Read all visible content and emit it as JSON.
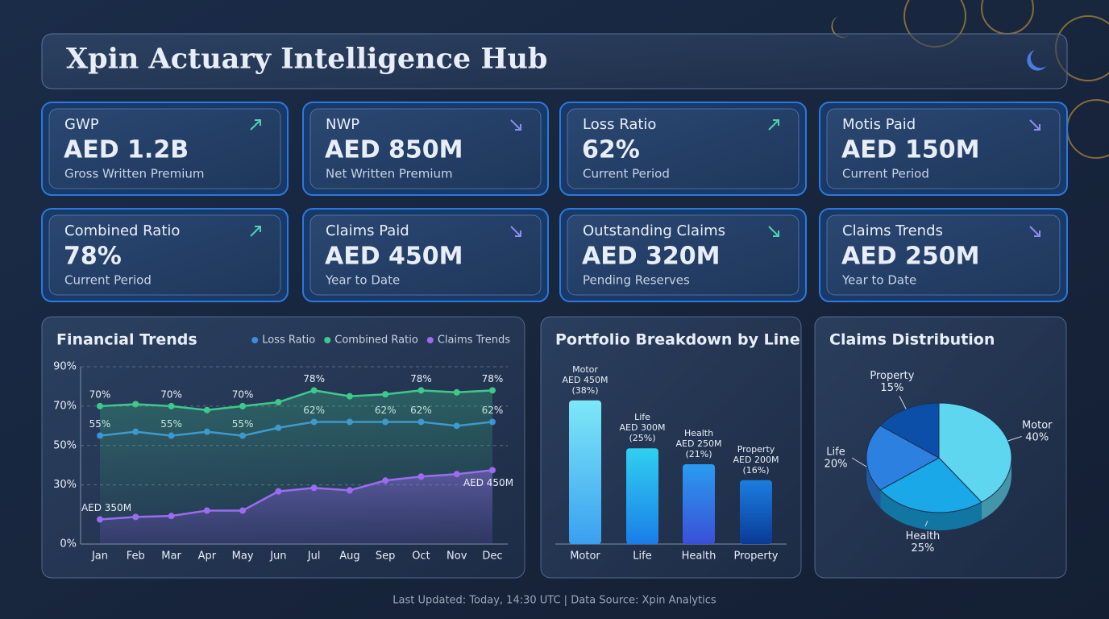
{
  "header": {
    "title": "Xpin Actuary Intelligence Hub"
  },
  "kpis": [
    {
      "label": "GWP",
      "value": "AED 1.2B",
      "subtitle": "Gross Written Premium",
      "trend": "up",
      "color": "#4fd1b0"
    },
    {
      "label": "NWP",
      "value": "AED 850M",
      "subtitle": "Net Written Premium",
      "trend": "down",
      "color": "#8f8cf0"
    },
    {
      "label": "Loss Ratio",
      "value": "62%",
      "subtitle": "Current Period",
      "trend": "up",
      "color": "#4fd1b0"
    },
    {
      "label": "Motis Paid",
      "value": "AED 150M",
      "subtitle": "Current Period",
      "trend": "down",
      "color": "#8f8cf0"
    },
    {
      "label": "Combined Ratio",
      "value": "78%",
      "subtitle": "Current Period",
      "trend": "up",
      "color": "#4fd1b0"
    },
    {
      "label": "Claims Paid",
      "value": "AED 450M",
      "subtitle": "Year to Date",
      "trend": "down",
      "color": "#8f8cf0"
    },
    {
      "label": "Outstanding Claims",
      "value": "AED 320M",
      "subtitle": "Pending Reserves",
      "trend": "down",
      "color": "#4fd1b0"
    },
    {
      "label": "Claims Trends",
      "value": "AED 250M",
      "subtitle": "Year to Date",
      "trend": "down",
      "color": "#8f8cf0"
    }
  ],
  "chart_data": [
    {
      "type": "line",
      "title": "Financial Trends",
      "categories": [
        "Jan",
        "Feb",
        "Mar",
        "Apr",
        "May",
        "Jun",
        "Jul",
        "Aug",
        "Sep",
        "Oct",
        "Nov",
        "Dec"
      ],
      "ylim": [
        0,
        90
      ],
      "yticks": [
        {
          "value": 0,
          "label": "0%"
        },
        {
          "value": 30,
          "label": "30%"
        },
        {
          "value": 50,
          "label": "50%"
        },
        {
          "value": 70,
          "label": "70%"
        },
        {
          "value": 90,
          "label": "90%"
        }
      ],
      "y2lim": [
        300,
        660
      ],
      "grid": true,
      "legend": "top-right",
      "series": [
        {
          "name": "Loss Ratio",
          "color": "#3b8de0",
          "values": [
            55,
            57,
            55,
            57,
            55,
            59,
            62,
            62,
            62,
            62,
            60,
            62
          ],
          "value_labels": [
            "55%",
            null,
            "55%",
            null,
            "55%",
            null,
            "62%",
            null,
            "62%",
            "62%",
            null,
            "62%"
          ]
        },
        {
          "name": "Combined Ratio",
          "color": "#3ec98a",
          "values": [
            70,
            71,
            70,
            68,
            70,
            72,
            78,
            75,
            76,
            78,
            77,
            78
          ],
          "value_labels": [
            "70%",
            null,
            "70%",
            null,
            "70%",
            null,
            "78%",
            null,
            null,
            "78%",
            null,
            "78%"
          ]
        },
        {
          "name": "Claims Trends",
          "color": "#9b6cf0",
          "axis": "y2",
          "values": [
            350,
            355,
            357,
            368,
            368,
            407,
            414,
            409,
            429,
            437,
            442,
            450
          ],
          "value_labels": [
            "AED 350M",
            null,
            null,
            null,
            null,
            null,
            null,
            null,
            null,
            null,
            null,
            "AED 450M"
          ]
        }
      ]
    },
    {
      "type": "bar",
      "title": "Portfolio Breakdown by Line",
      "categories": [
        "Motor",
        "Life",
        "Health",
        "Property"
      ],
      "values": [
        450,
        300,
        250,
        200
      ],
      "value_labels": [
        "AED 450M",
        "AED 300M",
        "AED 250M",
        "AED 200M"
      ],
      "share_labels": [
        "(38%)",
        "(25%)",
        "(21%)",
        "(16%)"
      ],
      "colors": [
        [
          "#7de8f8",
          "#3aa0f0"
        ],
        [
          "#30d0f0",
          "#1a7ee8"
        ],
        [
          "#2a9cf0",
          "#3a4fd8"
        ],
        [
          "#1a7ee0",
          "#0a3a98"
        ]
      ],
      "ylim": [
        0,
        500
      ]
    },
    {
      "type": "pie",
      "title": "Claims Distribution",
      "categories": [
        "Motor",
        "Health",
        "Life",
        "Property"
      ],
      "values": [
        40,
        25,
        20,
        15
      ],
      "value_labels": [
        "40%",
        "25%",
        "20%",
        "15%"
      ],
      "colors": [
        "#5fd6f0",
        "#1aa8e8",
        "#2b80e0",
        "#0c4fa8"
      ]
    }
  ],
  "footer": {
    "text": "Last Updated: Today, 14:30 UTC | Data Source: Xpin Analytics"
  }
}
